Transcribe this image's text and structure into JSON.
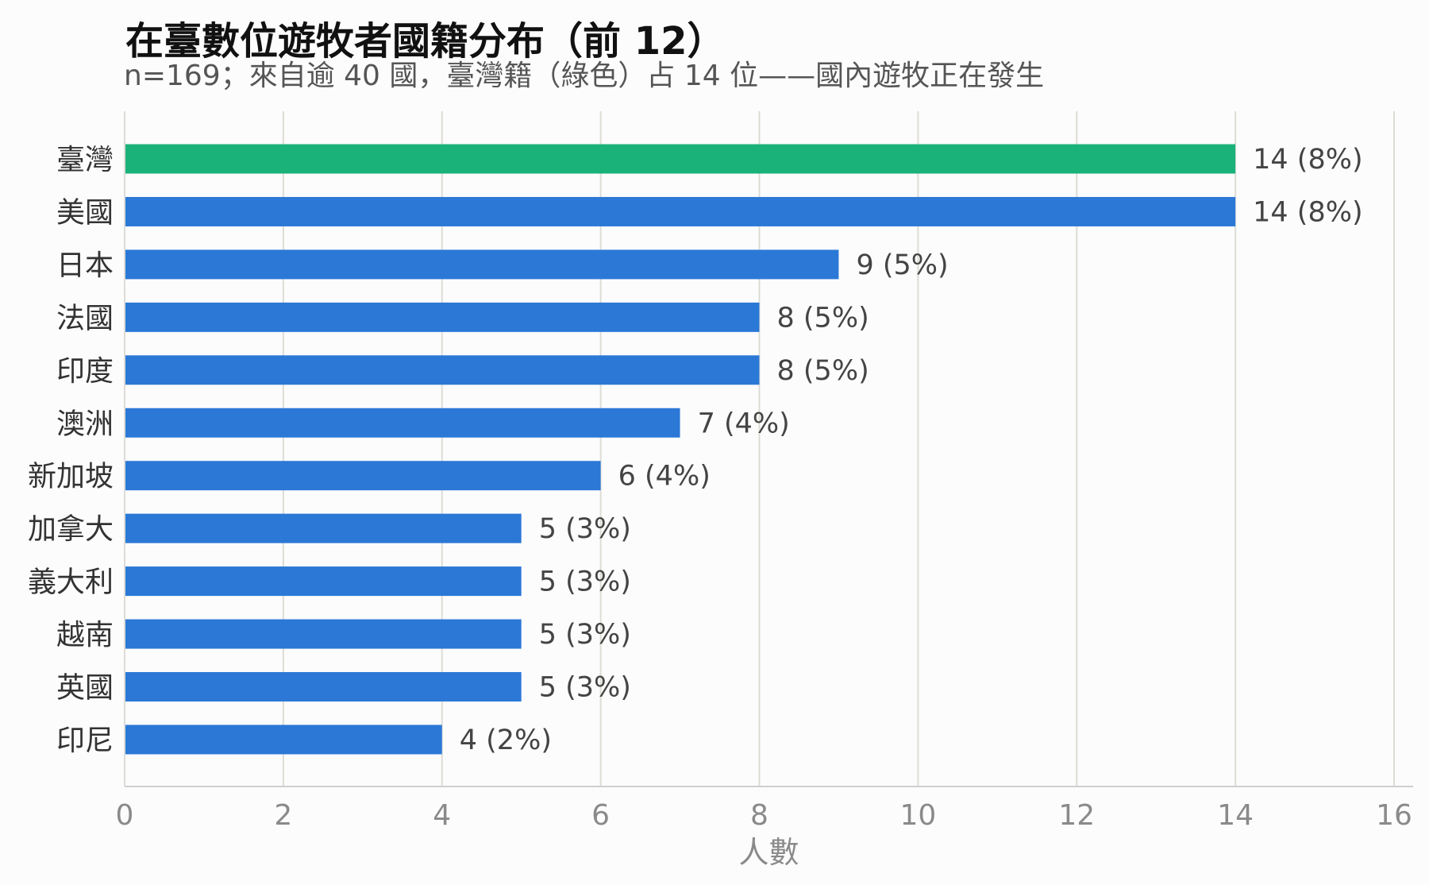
{
  "colors": {
    "accent": "#1bb27a",
    "bar": "#2b78d6",
    "grid": "#dddcd6",
    "axis": "#cfcfcf",
    "background": "#fcfcfc"
  },
  "chart_data": {
    "type": "bar",
    "orientation": "horizontal",
    "title": "在臺數位遊牧者國籍分布（前 12）",
    "subtitle": "n=169；來自逾 40 國，臺灣籍（綠色）占 14 位——國內遊牧正在發生",
    "xlabel": "人數",
    "ylabel": "",
    "xlim": [
      0,
      16
    ],
    "xticks": [
      0,
      2,
      4,
      6,
      8,
      10,
      12,
      14,
      16
    ],
    "grid": true,
    "legend": "none",
    "highlight_category": "臺灣",
    "categories": [
      "臺灣",
      "美國",
      "日本",
      "法國",
      "印度",
      "澳洲",
      "新加坡",
      "加拿大",
      "義大利",
      "越南",
      "英國",
      "印尼"
    ],
    "values": [
      14,
      14,
      9,
      8,
      8,
      7,
      6,
      5,
      5,
      5,
      5,
      4
    ],
    "data_labels": [
      "14 (8%)",
      "14 (8%)",
      "9 (5%)",
      "8 (5%)",
      "8 (5%)",
      "7 (4%)",
      "6 (4%)",
      "5 (3%)",
      "5 (3%)",
      "5 (3%)",
      "5 (3%)",
      "4 (2%)"
    ]
  }
}
